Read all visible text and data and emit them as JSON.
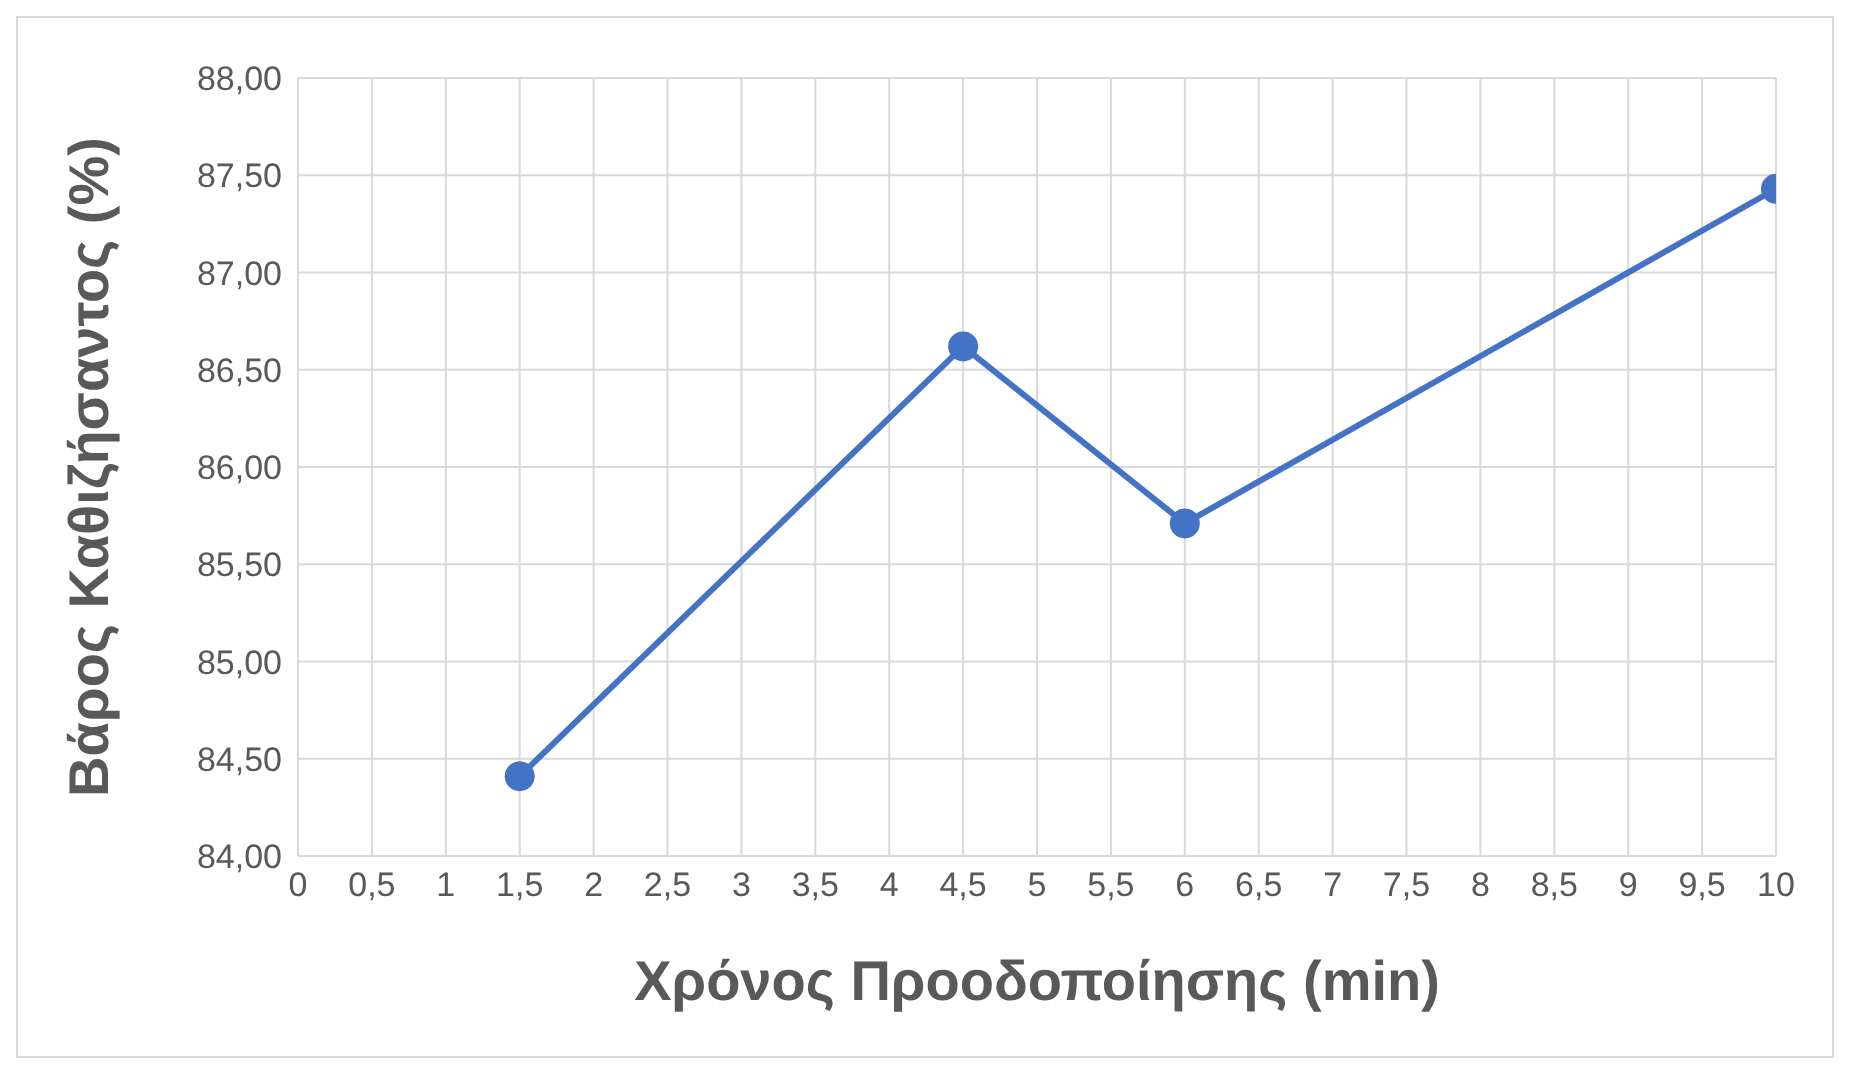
{
  "chart_data": {
    "type": "line",
    "xlabel": "Χρόνος Προοδοποίησης (min)",
    "ylabel": "Βάρος Καθιζήσαντος (%)",
    "x": [
      1.5,
      4.5,
      6,
      10
    ],
    "series": [
      {
        "color": "#4472c4",
        "values": [
          84.41,
          86.62,
          85.71,
          87.43
        ]
      }
    ],
    "xlim": [
      0,
      10
    ],
    "xticks": [
      0,
      {
        "value": 0.5,
        "label": "0,5"
      },
      1,
      {
        "value": 1.5,
        "label": "1,5"
      },
      2,
      {
        "value": 2.5,
        "label": "2,5"
      },
      3,
      {
        "value": 3.5,
        "label": "3,5"
      },
      4,
      {
        "value": 4.5,
        "label": "4,5"
      },
      5,
      {
        "value": 5.5,
        "label": "5,5"
      },
      6,
      {
        "value": 6.5,
        "label": "6,5"
      },
      7,
      {
        "value": 7.5,
        "label": "7,5"
      },
      8,
      {
        "value": 8.5,
        "label": "8,5"
      },
      9,
      {
        "value": 9.5,
        "label": "9,5"
      },
      10
    ],
    "ylim": [
      84,
      88
    ],
    "yticks": [
      {
        "value": 84,
        "label": "84,00"
      },
      {
        "value": 84.5,
        "label": "84,50"
      },
      {
        "value": 85,
        "label": "85,00"
      },
      {
        "value": 85.5,
        "label": "85,50"
      },
      {
        "value": 86,
        "label": "86,00"
      },
      {
        "value": 86.5,
        "label": "86,50"
      },
      {
        "value": 87,
        "label": "87,00"
      },
      {
        "value": 87.5,
        "label": "87,50"
      },
      {
        "value": 88,
        "label": "88,00"
      }
    ],
    "grid": true,
    "marker": "circle",
    "line_style": "solid",
    "legend": false
  }
}
